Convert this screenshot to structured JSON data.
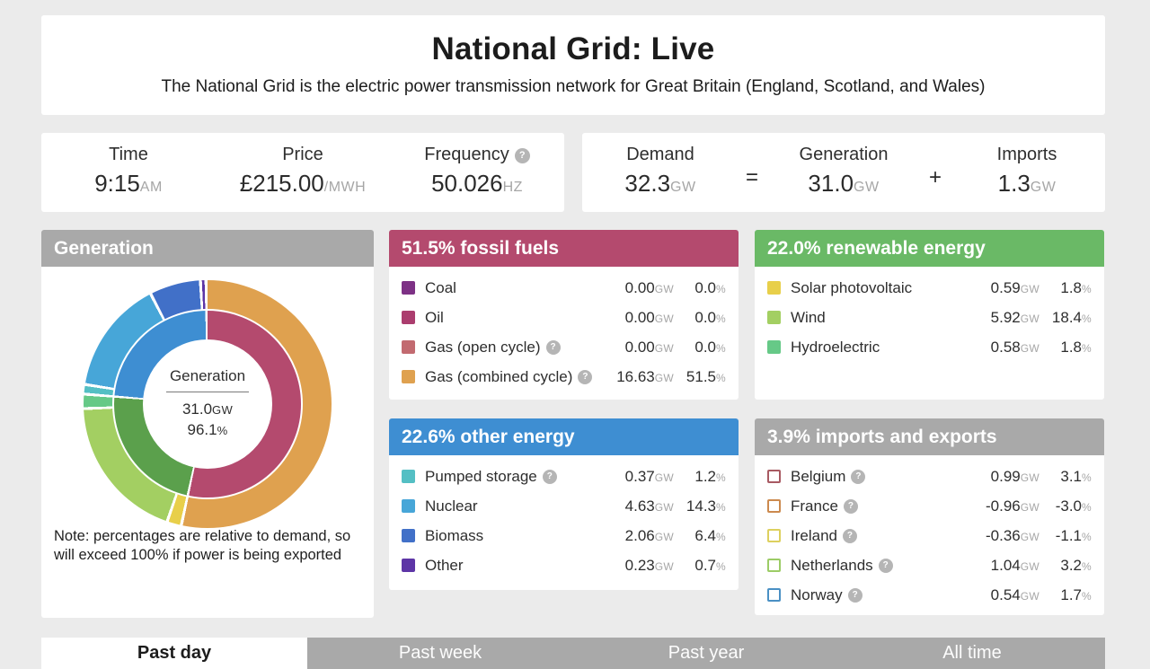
{
  "page": {
    "title": "National Grid: Live",
    "subtitle": "The National Grid is the electric power transmission network for Great Britain (England, Scotland, and Wales)"
  },
  "stats": {
    "time": {
      "label": "Time",
      "value": "9:15",
      "unit": "AM"
    },
    "price": {
      "label": "Price",
      "value": "£215.00",
      "unit": "/MWH"
    },
    "frequency": {
      "label": "Frequency",
      "value": "50.026",
      "unit": "HZ"
    },
    "demand": {
      "label": "Demand",
      "value": "32.3",
      "unit": "GW"
    },
    "equals": "=",
    "generation": {
      "label": "Generation",
      "value": "31.0",
      "unit": "GW"
    },
    "plus": "+",
    "imports": {
      "label": "Imports",
      "value": "1.3",
      "unit": "GW"
    }
  },
  "generation_panel": {
    "title": "Generation",
    "header_color": "#a9a9a9",
    "center": {
      "label": "Generation",
      "value": "31.0",
      "unit": "GW",
      "percent": "96.1",
      "percent_sign": "%"
    },
    "note": "Note: percentages are relative to demand, so will exceed 100% if power is being exported"
  },
  "chart_data": {
    "type": "donut",
    "title": "Generation",
    "center_value_gw": 31.0,
    "center_percent_of_demand": 96.1,
    "note": "percentages are relative to demand",
    "rings": {
      "outer": [
        {
          "label": "Gas (combined cycle)",
          "percent": 51.5,
          "color": "#dfa14f"
        },
        {
          "label": "Solar photovoltaic",
          "percent": 1.8,
          "color": "#e8cf4a"
        },
        {
          "label": "Wind",
          "percent": 18.4,
          "color": "#a3cf62"
        },
        {
          "label": "Hydroelectric",
          "percent": 1.8,
          "color": "#66c987"
        },
        {
          "label": "Pumped storage",
          "percent": 1.2,
          "color": "#54bfc4"
        },
        {
          "label": "Nuclear",
          "percent": 14.3,
          "color": "#47a6d8"
        },
        {
          "label": "Biomass",
          "percent": 6.4,
          "color": "#4170c8"
        },
        {
          "label": "Other",
          "percent": 0.7,
          "color": "#5d35a6"
        }
      ],
      "inner": [
        {
          "label": "Fossil fuels",
          "percent": 51.5,
          "color": "#b44a6e"
        },
        {
          "label": "Renewable energy",
          "percent": 22.0,
          "color": "#5ba04c"
        },
        {
          "label": "Other energy",
          "percent": 22.6,
          "color": "#3e8ed2"
        }
      ]
    }
  },
  "panels": [
    {
      "id": "fossil",
      "title": "51.5% fossil fuels",
      "header_color": "#b44a6e",
      "rows": [
        {
          "label": "Coal",
          "swatch": "#7d3185",
          "hollow": false,
          "help": false,
          "gw": "0.00",
          "pct": "0.0"
        },
        {
          "label": "Oil",
          "swatch": "#ab3d6e",
          "hollow": false,
          "help": false,
          "gw": "0.00",
          "pct": "0.0"
        },
        {
          "label": "Gas (open cycle)",
          "swatch": "#c26a70",
          "hollow": false,
          "help": true,
          "gw": "0.00",
          "pct": "0.0"
        },
        {
          "label": "Gas (combined cycle)",
          "swatch": "#dfa14f",
          "hollow": false,
          "help": true,
          "gw": "16.63",
          "pct": "51.5"
        }
      ]
    },
    {
      "id": "renewable",
      "title": "22.0% renewable energy",
      "header_color": "#6ab966",
      "rows": [
        {
          "label": "Solar photovoltaic",
          "swatch": "#e8cf4a",
          "hollow": false,
          "help": false,
          "gw": "0.59",
          "pct": "1.8"
        },
        {
          "label": "Wind",
          "swatch": "#a3cf62",
          "hollow": false,
          "help": false,
          "gw": "5.92",
          "pct": "18.4"
        },
        {
          "label": "Hydroelectric",
          "swatch": "#66c987",
          "hollow": false,
          "help": false,
          "gw": "0.58",
          "pct": "1.8"
        }
      ]
    },
    {
      "id": "other",
      "title": "22.6% other energy",
      "header_color": "#3e8ed2",
      "rows": [
        {
          "label": "Pumped storage",
          "swatch": "#54bfc4",
          "hollow": false,
          "help": true,
          "gw": "0.37",
          "pct": "1.2"
        },
        {
          "label": "Nuclear",
          "swatch": "#47a6d8",
          "hollow": false,
          "help": false,
          "gw": "4.63",
          "pct": "14.3"
        },
        {
          "label": "Biomass",
          "swatch": "#4170c8",
          "hollow": false,
          "help": false,
          "gw": "2.06",
          "pct": "6.4"
        },
        {
          "label": "Other",
          "swatch": "#5d35a6",
          "hollow": false,
          "help": false,
          "gw": "0.23",
          "pct": "0.7"
        }
      ]
    },
    {
      "id": "imports",
      "title": "3.9% imports and exports",
      "header_color": "#a9a9a9",
      "rows": [
        {
          "label": "Belgium",
          "swatch": "#a85a62",
          "hollow": true,
          "help": true,
          "gw": "0.99",
          "pct": "3.1"
        },
        {
          "label": "France",
          "swatch": "#cc8a4e",
          "hollow": true,
          "help": true,
          "gw": "-0.96",
          "pct": "-3.0"
        },
        {
          "label": "Ireland",
          "swatch": "#ddd05e",
          "hollow": true,
          "help": true,
          "gw": "-0.36",
          "pct": "-1.1"
        },
        {
          "label": "Netherlands",
          "swatch": "#9ccc66",
          "hollow": true,
          "help": true,
          "gw": "1.04",
          "pct": "3.2"
        },
        {
          "label": "Norway",
          "swatch": "#4a90c4",
          "hollow": true,
          "help": true,
          "gw": "0.54",
          "pct": "1.7"
        }
      ]
    }
  ],
  "tabs": [
    {
      "label": "Past day",
      "active": true
    },
    {
      "label": "Past week",
      "active": false
    },
    {
      "label": "Past year",
      "active": false
    },
    {
      "label": "All time",
      "active": false
    }
  ],
  "units": {
    "gw": "GW",
    "percent": "%",
    "help_glyph": "?"
  },
  "theme": {
    "background": "#ebebeb",
    "card": "#ffffff",
    "gray_header": "#a9a9a9",
    "text_dark": "#2e2e2e",
    "unit_gray": "#a6a6a6"
  }
}
